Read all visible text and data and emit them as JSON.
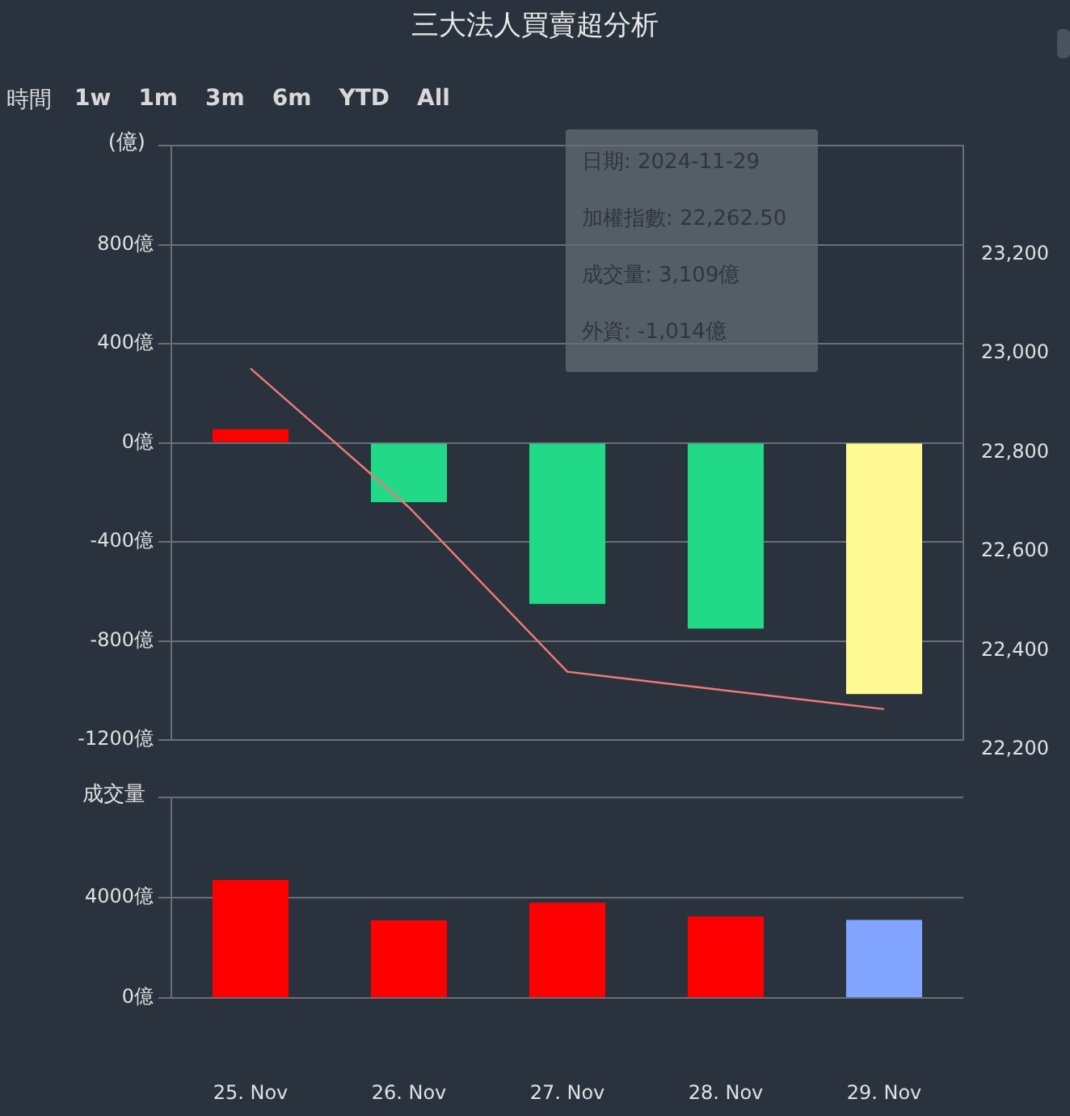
{
  "chart_data": [
    {
      "type": "bar",
      "title": "三大法人買賣超分析",
      "ylabel": "(億)",
      "categories": [
        null,
        null,
        null,
        null,
        null
      ],
      "series": [
        {
          "colors": [
            "#ff0000",
            "#21d987",
            "#21d987",
            "#21d987",
            "#fff993"
          ],
          "values": [
            55,
            -240,
            -650,
            -750,
            -1014
          ]
        },
        {
          "type": "line",
          "axis": "y2",
          "color": "#f07a7a",
          "values": [
            22950,
            22670,
            22338,
            null,
            22262.5
          ]
        }
      ],
      "ylim": [
        -1200,
        1200
      ],
      "yticks": [
        {
          "value": -1200,
          "label": "-1200億"
        },
        {
          "value": -800,
          "label": "-800億"
        },
        {
          "value": -400,
          "label": "-400億"
        },
        {
          "value": 0,
          "label": "0億"
        },
        {
          "value": 400,
          "label": "400億"
        },
        {
          "value": 800,
          "label": "800億"
        },
        {
          "value": 1200,
          "label": null
        }
      ],
      "y2lim": [
        22200,
        23400
      ],
      "y2ticks": [
        {
          "value": 22200,
          "label": "22,200"
        },
        {
          "value": 22400,
          "label": "22,400"
        },
        {
          "value": 22600,
          "label": "22,600"
        },
        {
          "value": 22800,
          "label": "22,800"
        },
        {
          "value": 23000,
          "label": "23,000"
        },
        {
          "value": 23200,
          "label": "23,200"
        },
        {
          "value": 23400,
          "label": null
        }
      ],
      "grid": "y",
      "legend": false,
      "marker": "none",
      "line_style": "solid",
      "tick_labels": "y",
      "annotations": [
        "時間",
        "1w",
        "1m",
        "3m",
        "6m",
        "YTD",
        "All"
      ]
    },
    {
      "type": "bar",
      "ylabel": "成交量",
      "categories": [
        "25. Nov",
        "26. Nov",
        "27. Nov",
        "28. Nov",
        "29. Nov"
      ],
      "colors": [
        "#ff0000",
        "#ff0000",
        "#ff0000",
        "#ff0000",
        "#80a4ff"
      ],
      "values": [
        4700,
        3100,
        3800,
        3250,
        3109
      ],
      "ylim": [
        0,
        8000
      ],
      "yticks": [
        {
          "value": 0,
          "label": "0億"
        },
        {
          "value": 4000,
          "label": "4000億"
        },
        {
          "value": 8000,
          "label": null
        }
      ],
      "grid": "y",
      "legend": false,
      "annotations": [
        "日期: 2024-11-29",
        "加權指數: 22,262.50",
        "成交量: 3,109億",
        "外資: -1,014億"
      ]
    }
  ]
}
